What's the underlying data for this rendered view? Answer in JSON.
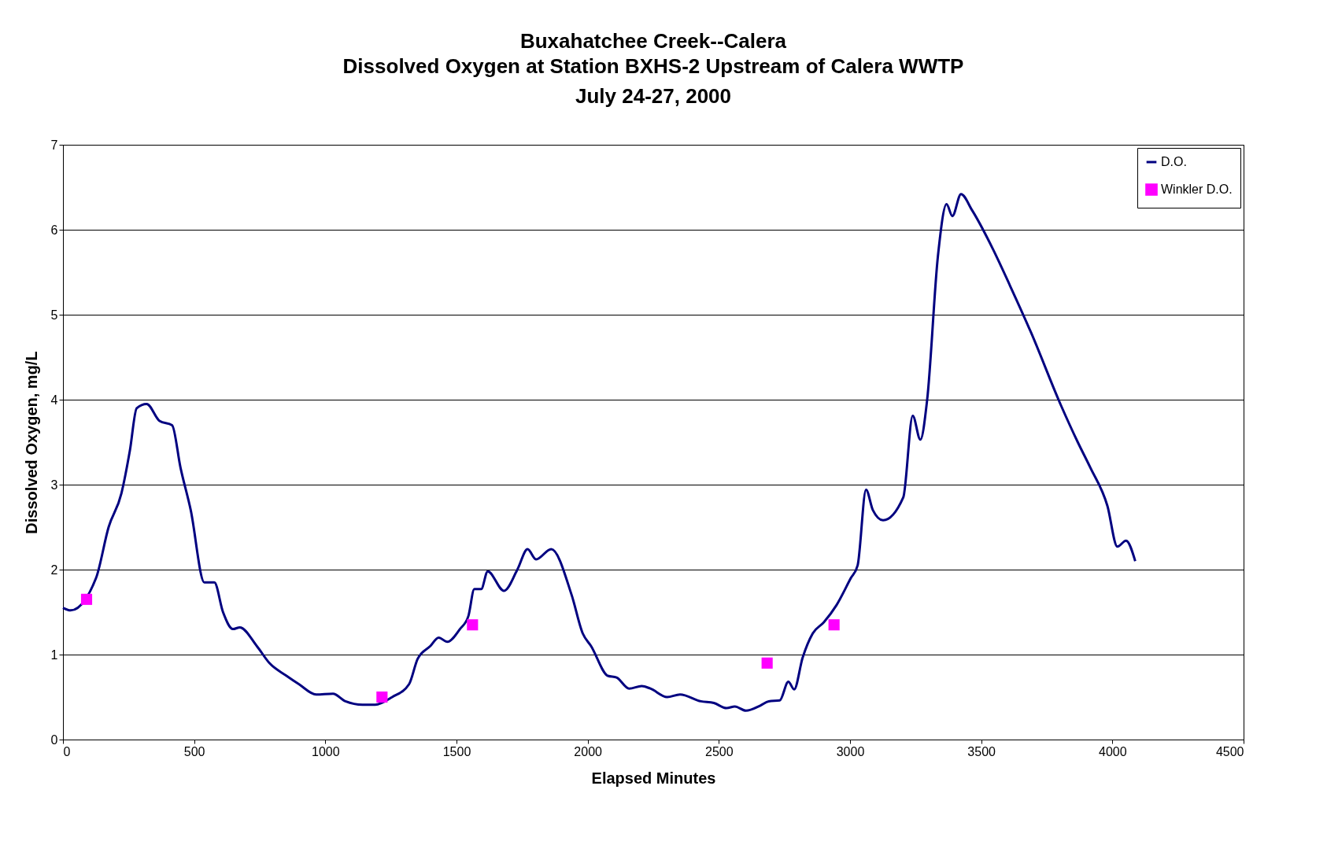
{
  "chart_data": {
    "type": "line",
    "title": "Buxahatchee Creek--Calera",
    "subtitle": "Dissolved Oxygen at Station BXHS-2 Upstream of Calera WWTP\nJuly 24-27, 2000",
    "xlabel": "Elapsed Minutes",
    "ylabel": "Dissolved Oxygen, mg/L",
    "xlim": [
      0,
      4500
    ],
    "xticks": [
      0,
      500,
      1000,
      1500,
      2000,
      2500,
      3000,
      3500,
      4000,
      4500
    ],
    "ylim": [
      0,
      7
    ],
    "yticks": [
      0,
      1,
      2,
      3,
      4,
      5,
      6,
      7
    ],
    "grid": "y",
    "legend": "top right",
    "series": [
      {
        "name": "D.O.",
        "type": "line",
        "color": "#000080",
        "x": [
          0,
          29,
          126,
          174,
          223,
          255,
          281,
          319,
          368,
          416,
          448,
          487,
          539,
          577,
          610,
          648,
          674,
          739,
          787,
          852,
          900,
          965,
          1029,
          1077,
          1142,
          1190,
          1255,
          1319,
          1352,
          1400,
          1432,
          1465,
          1513,
          1545,
          1568,
          1594,
          1619,
          1681,
          1732,
          1771,
          1803,
          1861,
          1939,
          1981,
          2013,
          2077,
          2110,
          2158,
          2206,
          2239,
          2303,
          2352,
          2432,
          2481,
          2529,
          2561,
          2603,
          2658,
          2690,
          2732,
          2765,
          2787,
          2819,
          2858,
          2900,
          2948,
          3003,
          3029,
          3061,
          3087,
          3126,
          3203,
          3239,
          3268,
          3294,
          3335,
          3368,
          3390,
          3423,
          3465,
          3545,
          3610,
          3690,
          3803,
          3868,
          3916,
          3981,
          4019,
          4052,
          4087
        ],
        "values": [
          1.55,
          1.52,
          1.9,
          2.5,
          2.9,
          3.4,
          3.9,
          3.95,
          3.75,
          3.7,
          3.2,
          2.7,
          1.85,
          1.85,
          1.5,
          1.3,
          1.32,
          1.1,
          0.9,
          0.75,
          0.65,
          0.53,
          0.54,
          0.45,
          0.41,
          0.41,
          0.5,
          0.65,
          0.95,
          1.1,
          1.2,
          1.15,
          1.3,
          1.45,
          1.77,
          1.77,
          1.98,
          1.75,
          2.0,
          2.24,
          2.12,
          2.24,
          1.7,
          1.25,
          1.1,
          0.75,
          0.73,
          0.6,
          0.63,
          0.6,
          0.5,
          0.53,
          0.45,
          0.43,
          0.37,
          0.39,
          0.34,
          0.4,
          0.45,
          0.46,
          0.68,
          0.59,
          0.96,
          1.25,
          1.38,
          1.58,
          1.9,
          2.05,
          2.94,
          2.7,
          2.58,
          2.85,
          3.81,
          3.53,
          4.0,
          5.69,
          6.3,
          6.16,
          6.42,
          6.23,
          5.77,
          5.34,
          4.79,
          3.94,
          3.5,
          3.2,
          2.75,
          2.27,
          2.34,
          2.1
        ]
      },
      {
        "name": "Winkler D.O.",
        "type": "scatter",
        "marker": "square",
        "color": "#ff00ff",
        "x": [
          90,
          1216,
          1561,
          2684,
          2939
        ],
        "values": [
          1.65,
          0.5,
          1.35,
          0.9,
          1.35
        ]
      }
    ]
  }
}
